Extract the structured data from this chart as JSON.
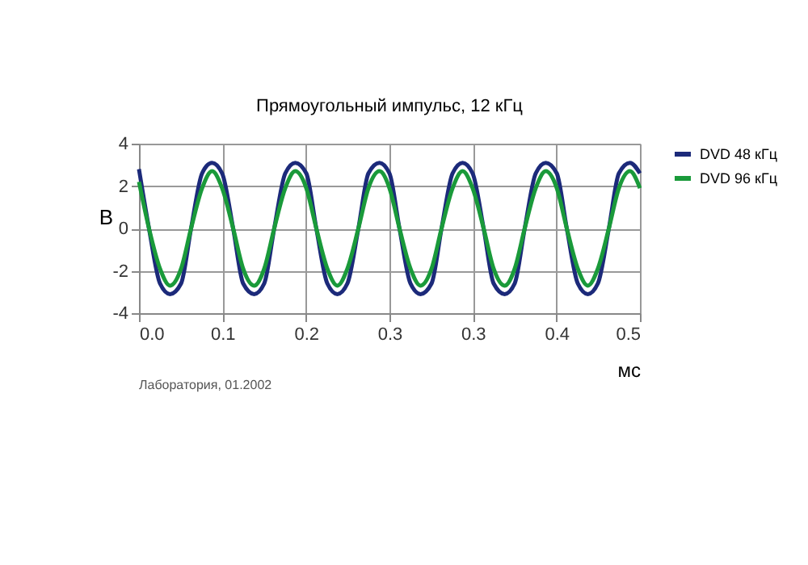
{
  "chart_data": {
    "type": "line",
    "title": "Прямоугольный импульс, 12 кГц",
    "xlabel": "мс",
    "ylabel": "В",
    "annotations": [
      "Лаборатория, 01.2002"
    ],
    "x": [
      0,
      0.01,
      0.021,
      0.031,
      0.042,
      0.052,
      0.063,
      0.073,
      0.083,
      0.094,
      0.104,
      0.115,
      0.125,
      0.135,
      0.146,
      0.156,
      0.167,
      0.177,
      0.188,
      0.198,
      0.208,
      0.219,
      0.229,
      0.24,
      0.25,
      0.26,
      0.271,
      0.281,
      0.292,
      0.302,
      0.313,
      0.323,
      0.333,
      0.344,
      0.354,
      0.365,
      0.375,
      0.385,
      0.396,
      0.406,
      0.417,
      0.427,
      0.438,
      0.448,
      0.458,
      0.469,
      0.479,
      0.49,
      0.5
    ],
    "series": [
      {
        "name": "DVD 48 кГц",
        "color": "#1c2a7a",
        "values": [
          2.8,
          0,
          -2.6,
          -3.1,
          -2.6,
          0,
          2.6,
          3.1,
          2.6,
          0,
          -2.6,
          -3.1,
          -2.6,
          0,
          2.6,
          3.1,
          2.6,
          0,
          -2.6,
          -3.1,
          -2.6,
          0,
          2.6,
          3.1,
          2.6,
          0,
          -2.6,
          -3.1,
          -2.6,
          0,
          2.6,
          3.1,
          2.6,
          0,
          -2.6,
          -3.1,
          -2.6,
          0,
          2.6,
          3.1,
          2.6,
          0,
          -2.6,
          -3.1,
          -2.6,
          0,
          2.6,
          3.1,
          2.6
        ]
      },
      {
        "name": "DVD 96 кГц",
        "color": "#1a9a3a",
        "values": [
          2.2,
          0,
          -1.9,
          -2.7,
          -1.9,
          0,
          1.9,
          2.7,
          1.9,
          0,
          -1.9,
          -2.7,
          -1.9,
          0,
          1.9,
          2.7,
          1.9,
          0,
          -1.9,
          -2.7,
          -1.9,
          0,
          1.9,
          2.7,
          1.9,
          0,
          -1.9,
          -2.7,
          -1.9,
          0,
          1.9,
          2.7,
          1.9,
          0,
          -1.9,
          -2.7,
          -1.9,
          0,
          1.9,
          2.7,
          1.9,
          0,
          -1.9,
          -2.7,
          -1.9,
          0,
          1.9,
          2.7,
          1.9
        ]
      }
    ],
    "xlim": [
      0,
      0.5
    ],
    "xticks": [
      {
        "value": 0,
        "label": "0.0"
      },
      {
        "value": 0.0833,
        "label": "0.1"
      },
      {
        "value": 0.1667,
        "label": "0.2"
      },
      {
        "value": 0.25,
        "label": "0.3"
      },
      {
        "value": 0.3333,
        "label": "0.3"
      },
      {
        "value": 0.4167,
        "label": "0.4"
      },
      {
        "value": 0.5,
        "label": "0.5"
      }
    ],
    "ylim": [
      -4,
      4
    ],
    "yticks": [
      -4,
      -2,
      0,
      2,
      4
    ],
    "grid": true,
    "legend": "right",
    "line_style": "solid",
    "marker": "none"
  }
}
